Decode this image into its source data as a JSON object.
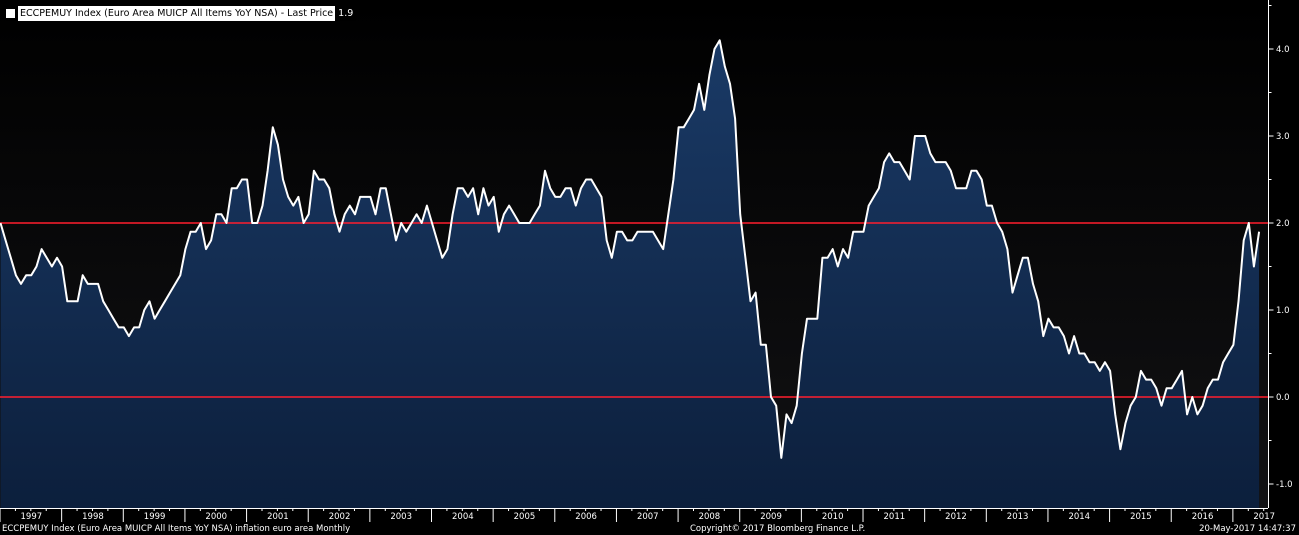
{
  "legend": {
    "label": "ECCPEMUY Index (Euro Area MUICP All Items YoY NSA) - Last Price",
    "value": "1.9"
  },
  "footer": {
    "left": "ECCPEMUY Index (Euro Area MUICP All Items YoY NSA) inflation euro area  Monthly",
    "center": "Copyright© 2017 Bloomberg Finance L.P.",
    "right": "20-May-2017 14:47:37"
  },
  "colors": {
    "background": "#000000",
    "line": "#ffffff",
    "area_top": "#1a3a66",
    "area_bottom": "#0c1f3c",
    "reference_lines": "#ff1e2e"
  },
  "chart_data": {
    "type": "area",
    "title": "",
    "xlabel": "",
    "ylabel": "",
    "ylim": [
      -1.2,
      4.6
    ],
    "xlim": [
      "1997-01",
      "2017-04"
    ],
    "grid": false,
    "yticks": [
      4.0,
      3.0,
      2.0,
      1.0,
      0.0,
      -1.0
    ],
    "ytick_labels": [
      "4.0",
      "3.0",
      "2.0",
      "1.0",
      "0.0",
      "-1.0"
    ],
    "xtick_labels": [
      "1997",
      "1998",
      "1999",
      "2000",
      "2001",
      "2002",
      "2003",
      "2004",
      "2005",
      "2006",
      "2007",
      "2008",
      "2009",
      "2010",
      "2011",
      "2012",
      "2013",
      "2014",
      "2015",
      "2016",
      "2017"
    ],
    "reference_lines": [
      2.0,
      0.0
    ],
    "series": [
      {
        "start": "1997-01",
        "frequency": "monthly",
        "values": [
          2.0,
          1.8,
          1.6,
          1.4,
          1.3,
          1.4,
          1.4,
          1.5,
          1.7,
          1.6,
          1.5,
          1.6,
          1.5,
          1.1,
          1.1,
          1.1,
          1.4,
          1.3,
          1.3,
          1.3,
          1.1,
          1.0,
          0.9,
          0.8,
          0.8,
          0.7,
          0.8,
          0.8,
          1.0,
          1.1,
          0.9,
          1.0,
          1.1,
          1.2,
          1.3,
          1.4,
          1.7,
          1.9,
          1.9,
          2.0,
          1.7,
          1.8,
          2.1,
          2.1,
          2.0,
          2.4,
          2.4,
          2.5,
          2.5,
          2.0,
          2.0,
          2.2,
          2.6,
          3.1,
          2.9,
          2.5,
          2.3,
          2.2,
          2.3,
          2.0,
          2.1,
          2.6,
          2.5,
          2.5,
          2.4,
          2.1,
          1.9,
          2.1,
          2.2,
          2.1,
          2.3,
          2.3,
          2.3,
          2.1,
          2.4,
          2.4,
          2.1,
          1.8,
          2.0,
          1.9,
          2.0,
          2.1,
          2.0,
          2.2,
          2.0,
          1.8,
          1.6,
          1.7,
          2.1,
          2.4,
          2.4,
          2.3,
          2.4,
          2.1,
          2.4,
          2.2,
          2.3,
          1.9,
          2.1,
          2.2,
          2.1,
          2.0,
          2.0,
          2.0,
          2.1,
          2.2,
          2.6,
          2.4,
          2.3,
          2.3,
          2.4,
          2.4,
          2.2,
          2.4,
          2.5,
          2.5,
          2.4,
          2.3,
          1.8,
          1.6,
          1.9,
          1.9,
          1.8,
          1.8,
          1.9,
          1.9,
          1.9,
          1.9,
          1.8,
          1.7,
          2.1,
          2.5,
          3.1,
          3.1,
          3.2,
          3.3,
          3.6,
          3.3,
          3.7,
          4.0,
          4.1,
          3.8,
          3.6,
          3.2,
          2.1,
          1.6,
          1.1,
          1.2,
          0.6,
          0.6,
          0.0,
          -0.1,
          -0.7,
          -0.2,
          -0.3,
          -0.1,
          0.5,
          0.9,
          0.9,
          0.9,
          1.6,
          1.6,
          1.7,
          1.5,
          1.7,
          1.6,
          1.9,
          1.9,
          1.9,
          2.2,
          2.3,
          2.4,
          2.7,
          2.8,
          2.7,
          2.7,
          2.6,
          2.5,
          3.0,
          3.0,
          3.0,
          2.8,
          2.7,
          2.7,
          2.7,
          2.6,
          2.4,
          2.4,
          2.4,
          2.6,
          2.6,
          2.5,
          2.2,
          2.2,
          2.0,
          1.9,
          1.7,
          1.2,
          1.4,
          1.6,
          1.6,
          1.3,
          1.1,
          0.7,
          0.9,
          0.8,
          0.8,
          0.7,
          0.5,
          0.7,
          0.5,
          0.5,
          0.4,
          0.4,
          0.3,
          0.4,
          0.3,
          -0.2,
          -0.6,
          -0.3,
          -0.1,
          0.0,
          0.3,
          0.2,
          0.2,
          0.1,
          -0.1,
          0.1,
          0.1,
          0.2,
          0.3,
          -0.2,
          0.0,
          -0.2,
          -0.1,
          0.1,
          0.2,
          0.2,
          0.4,
          0.5,
          0.6,
          1.1,
          1.8,
          2.0,
          1.5,
          1.9
        ]
      }
    ]
  }
}
